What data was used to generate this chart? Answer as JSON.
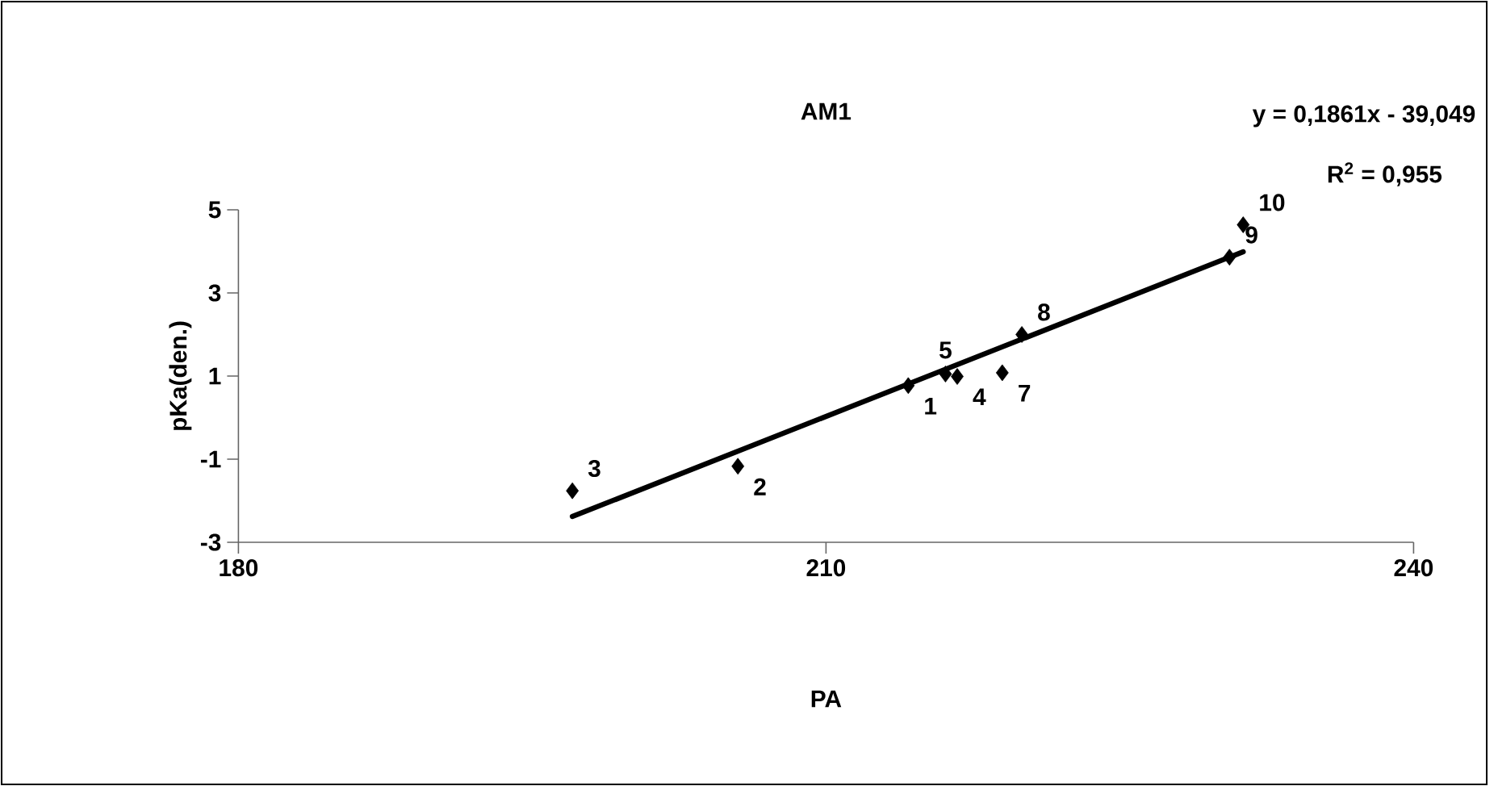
{
  "chart_data": {
    "type": "scatter",
    "title": "AM1",
    "xlabel": "PA",
    "ylabel": "pKa(den.)",
    "xlim": [
      180,
      240
    ],
    "xticks": [
      180,
      210,
      240
    ],
    "ylim": [
      -3,
      5
    ],
    "yticks": [
      -3,
      -1,
      1,
      3,
      5
    ],
    "grid": false,
    "series": [
      {
        "type": "scatter",
        "color": "#000000",
        "marker": "diamond",
        "x": [
          214.2,
          205.5,
          197.05,
          216.7,
          216.1,
          219.0,
          220.0,
          230.6,
          231.3
        ],
        "values": [
          0.77,
          -1.17,
          -1.76,
          0.99,
          1.05,
          1.08,
          2.0,
          3.86,
          4.64
        ]
      },
      {
        "type": "line",
        "color": "#000000",
        "line_style": "solid",
        "x": [
          197.05,
          231.3
        ],
        "values": [
          -2.38,
          3.99
        ]
      }
    ],
    "annotations": [
      {
        "text": "1",
        "x": 214.2,
        "y": 0.77
      },
      {
        "text": "2",
        "x": 205.5,
        "y": -1.17
      },
      {
        "text": "3",
        "x": 197.05,
        "y": -1.76
      },
      {
        "text": "4",
        "x": 216.7,
        "y": 0.99
      },
      {
        "text": "5",
        "x": 216.1,
        "y": 1.05
      },
      {
        "text": "7",
        "x": 219.0,
        "y": 1.08
      },
      {
        "text": "8",
        "x": 220.0,
        "y": 2.0
      },
      {
        "text": "9",
        "x": 230.6,
        "y": 3.86
      },
      {
        "text": "10",
        "x": 231.3,
        "y": 4.64
      },
      "y = 0,1861x - 39,049",
      "R$^{2}$ = 0,955"
    ]
  }
}
